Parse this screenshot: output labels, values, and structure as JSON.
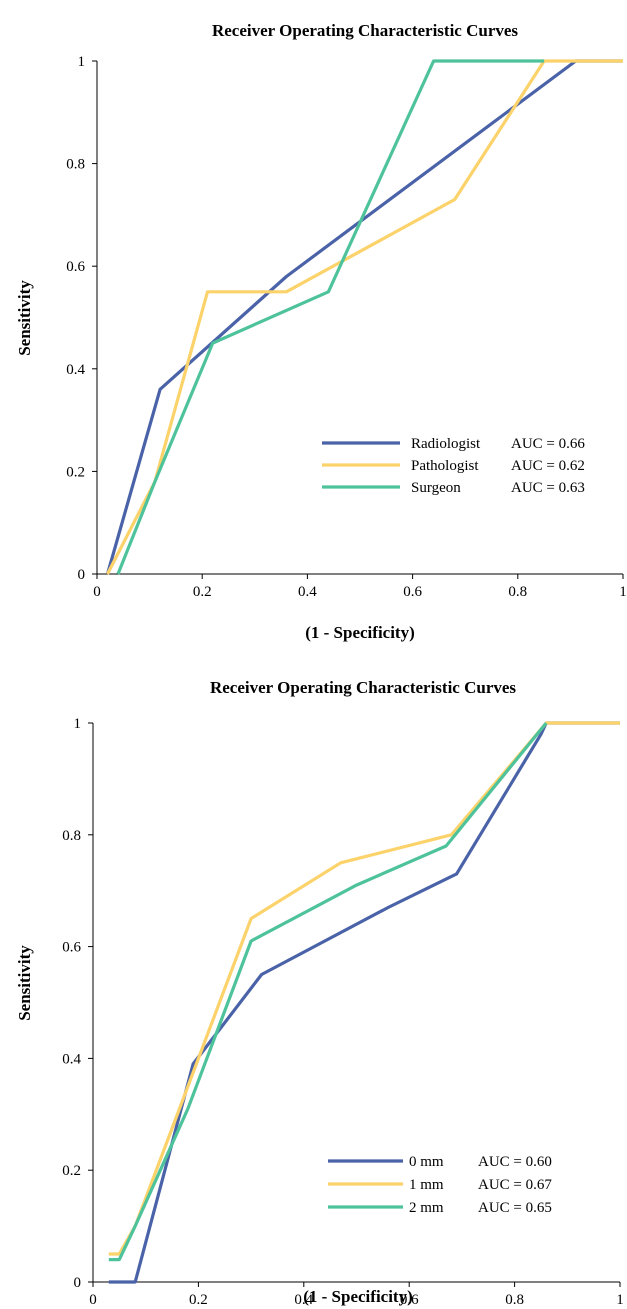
{
  "chart_data": [
    {
      "type": "line",
      "title": "Receiver Operating Characteristic Curves",
      "xlabel": "(1 - Specificity)",
      "ylabel": "Sensitivity",
      "xlim": [
        0,
        1
      ],
      "ylim": [
        0,
        1
      ],
      "xticks": [
        "0",
        "0.2",
        "0.4",
        "0.6",
        "0.8",
        "1"
      ],
      "yticks": [
        "0",
        "0.2",
        "0.4",
        "0.6",
        "0.8",
        "1"
      ],
      "grid": false,
      "legend_position": "bottom-right",
      "series": [
        {
          "name": "Radiologist",
          "auc_label": "AUC = 0.66",
          "color": "#4a62a8",
          "points": [
            [
              0.02,
              0
            ],
            [
              0.12,
              0.36
            ],
            [
              0.36,
              0.58
            ],
            [
              0.91,
              1.0
            ],
            [
              1.0,
              1.0
            ]
          ]
        },
        {
          "name": "Pathologist",
          "auc_label": "AUC = 0.62",
          "color": "#fcd26a",
          "points": [
            [
              0.02,
              0
            ],
            [
              0.07,
              0.1
            ],
            [
              0.11,
              0.18
            ],
            [
              0.21,
              0.55
            ],
            [
              0.36,
              0.55
            ],
            [
              0.68,
              0.73
            ],
            [
              0.85,
              1.0
            ],
            [
              1.0,
              1.0
            ]
          ]
        },
        {
          "name": "Surgeon",
          "auc_label": "AUC = 0.63",
          "color": "#4ec39b",
          "points": [
            [
              0.04,
              0
            ],
            [
              0.11,
              0.18
            ],
            [
              0.22,
              0.45
            ],
            [
              0.44,
              0.55
            ],
            [
              0.64,
              1.0
            ],
            [
              0.85,
              1.0
            ]
          ]
        }
      ]
    },
    {
      "type": "line",
      "title": "Receiver Operating Characteristic Curves",
      "xlabel": "(1 - Specificity)",
      "ylabel": "Sensitivity",
      "xlim": [
        0,
        1
      ],
      "ylim": [
        0,
        1
      ],
      "xticks": [
        "0",
        "0.2",
        "0.4",
        "0.6",
        "0.8",
        "1"
      ],
      "yticks": [
        "0",
        "0.2",
        "0.4",
        "0.6",
        "0.8",
        "1"
      ],
      "grid": false,
      "legend_position": "bottom-right",
      "series": [
        {
          "name": "0 mm",
          "auc_label": "AUC = 0.60",
          "color": "#4a62a8",
          "points": [
            [
              0.03,
              0
            ],
            [
              0.08,
              0
            ],
            [
              0.19,
              0.39
            ],
            [
              0.32,
              0.55
            ],
            [
              0.56,
              0.67
            ],
            [
              0.69,
              0.73
            ],
            [
              0.85,
              0.98
            ],
            [
              0.86,
              1.0
            ],
            [
              1.0,
              1.0
            ]
          ]
        },
        {
          "name": "1 mm",
          "auc_label": "AUC = 0.67",
          "color": "#fcd26a",
          "points": [
            [
              0.03,
              0.05
            ],
            [
              0.05,
              0.05
            ],
            [
              0.08,
              0.1
            ],
            [
              0.18,
              0.35
            ],
            [
              0.3,
              0.65
            ],
            [
              0.47,
              0.75
            ],
            [
              0.68,
              0.8
            ],
            [
              0.86,
              1.0
            ],
            [
              1.0,
              1.0
            ]
          ]
        },
        {
          "name": "2 mm",
          "auc_label": "AUC = 0.65",
          "color": "#4ec39b",
          "points": [
            [
              0.03,
              0.04
            ],
            [
              0.05,
              0.04
            ],
            [
              0.08,
              0.1
            ],
            [
              0.18,
              0.31
            ],
            [
              0.3,
              0.61
            ],
            [
              0.5,
              0.71
            ],
            [
              0.67,
              0.78
            ],
            [
              0.86,
              1.0
            ]
          ]
        }
      ]
    }
  ]
}
